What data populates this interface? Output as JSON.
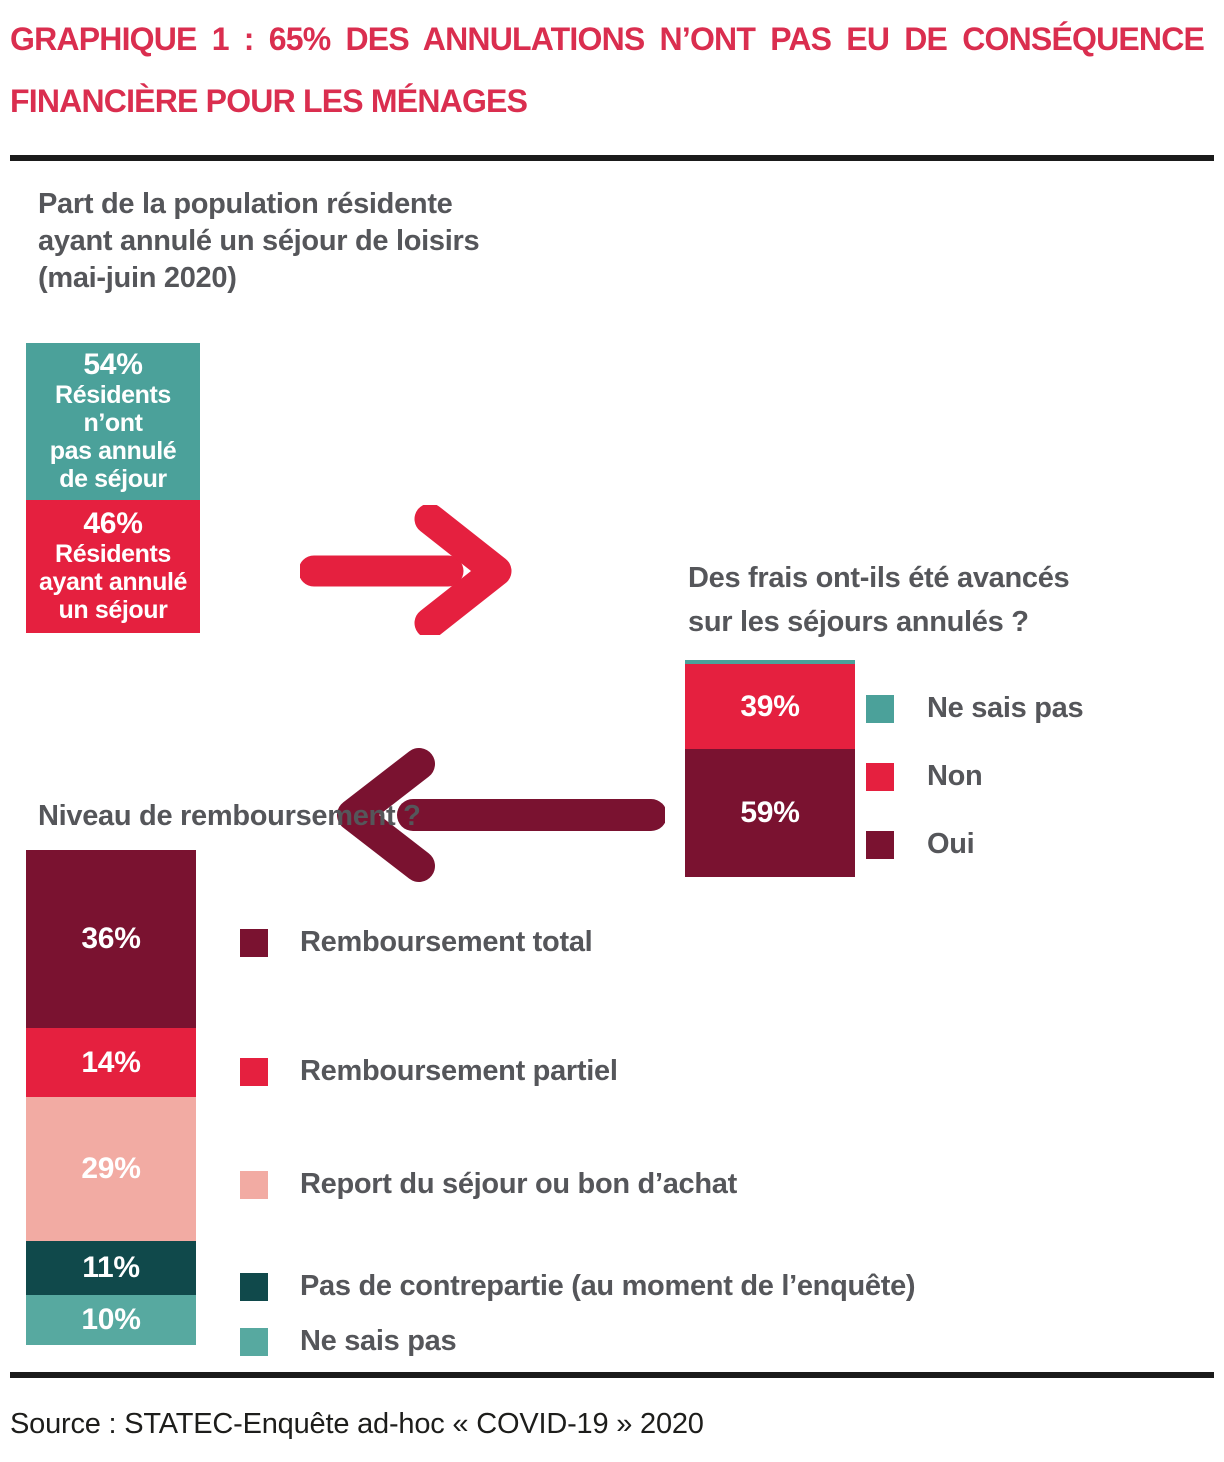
{
  "title": {
    "line1": "GRAPHIQUE 1 : 65% DES ANNULATIONS N’ONT PAS EU DE CONSÉQUENCE",
    "line2": "FINANCIÈRE POUR LES MÉNAGES"
  },
  "intro": {
    "line1": "Part de la population résidente",
    "line2": "ayant annulé un séjour de loisirs",
    "line3": "(mai-juin 2020)"
  },
  "question_frais": {
    "line1": "Des frais ont-ils été avancés",
    "line2": "sur les séjours annulés ?"
  },
  "question_niveau": "Niveau de remboursement ?",
  "source": "Source : STATEC-Enquête ad-hoc « COVID-19 » 2020",
  "colors": {
    "title_red": "#DA2E4F",
    "red": "#E5203F",
    "maroon": "#7A1230",
    "teal": "#4BA19A",
    "teal_light": "#57A9A0",
    "teal_dark": "#10494B",
    "pink": "#F2ABA3",
    "text_gray": "#55565A",
    "rule_black": "#1b1b1b"
  },
  "legend_frais": {
    "items": [
      {
        "label": "Ne sais pas",
        "color": "#4BA19A"
      },
      {
        "label": "Non",
        "color": "#E5203F"
      },
      {
        "label": "Oui",
        "color": "#7A1230"
      }
    ]
  },
  "legend_remb": {
    "items": [
      {
        "label": "Remboursement total",
        "color": "#7A1230"
      },
      {
        "label": "Remboursement partiel",
        "color": "#E5203F"
      },
      {
        "label": "Report du séjour ou bon d’achat",
        "color": "#F2ABA3"
      },
      {
        "label": "Pas de contrepartie (au moment de l’enquête)",
        "color": "#10494B"
      },
      {
        "label": "Ne sais pas",
        "color": "#57A9A0"
      }
    ]
  },
  "chart_data": [
    {
      "id": "population",
      "type": "bar",
      "stacked": true,
      "title": "Part de la population résidente ayant annulé un séjour de loisirs (mai-juin 2020)",
      "unit": "%",
      "segments": [
        {
          "value": 54,
          "pct_label": "54%",
          "lines": [
            "Résidents",
            "n’ont",
            "pas annulé",
            "de séjour"
          ],
          "color": "#4BA19A"
        },
        {
          "value": 46,
          "pct_label": "46%",
          "lines": [
            "Résidents",
            "ayant annulé",
            "un séjour"
          ],
          "color": "#E5203F"
        }
      ]
    },
    {
      "id": "frais-avances",
      "type": "bar",
      "stacked": true,
      "title": "Des frais ont-ils été avancés sur les séjours annulés ?",
      "unit": "%",
      "segments": [
        {
          "value": 2,
          "pct_label": "",
          "lines": [],
          "color": "#4BA19A",
          "legend": "Ne sais pas"
        },
        {
          "value": 39,
          "pct_label": "39%",
          "lines": [],
          "color": "#E5203F",
          "legend": "Non"
        },
        {
          "value": 59,
          "pct_label": "59%",
          "lines": [],
          "color": "#7A1230",
          "legend": "Oui"
        }
      ]
    },
    {
      "id": "niveau-remboursement",
      "type": "bar",
      "stacked": true,
      "title": "Niveau de remboursement ?",
      "unit": "%",
      "segments": [
        {
          "value": 36,
          "pct_label": "36%",
          "lines": [],
          "color": "#7A1230",
          "legend": "Remboursement total"
        },
        {
          "value": 14,
          "pct_label": "14%",
          "lines": [],
          "color": "#E5203F",
          "legend": "Remboursement partiel"
        },
        {
          "value": 29,
          "pct_label": "29%",
          "lines": [],
          "color": "#F2ABA3",
          "legend": "Report du séjour ou bon d’achat"
        },
        {
          "value": 11,
          "pct_label": "11%",
          "lines": [],
          "color": "#10494B",
          "legend": "Pas de contrepartie (au moment de l’enquête)"
        },
        {
          "value": 10,
          "pct_label": "10%",
          "lines": [],
          "color": "#57A9A0",
          "legend": "Ne sais pas"
        }
      ]
    }
  ]
}
